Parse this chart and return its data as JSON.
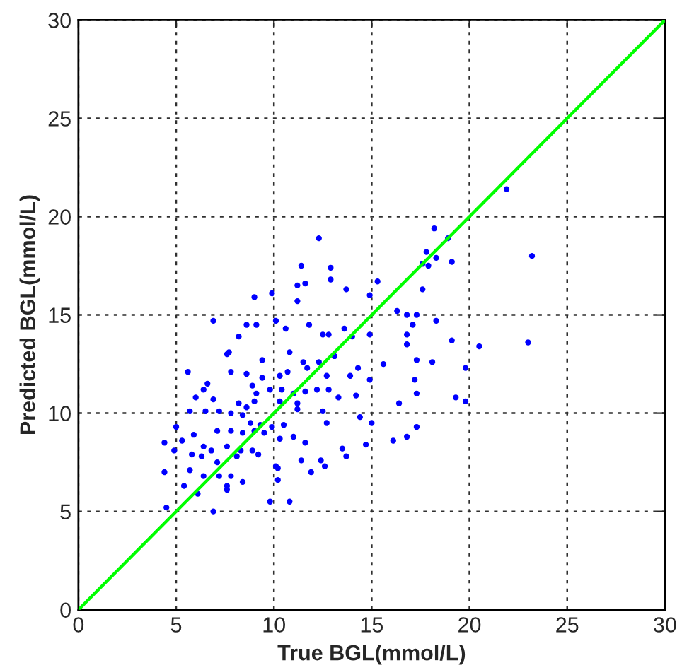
{
  "chart_data": {
    "type": "scatter",
    "xlabel": "True BGL(mmol/L)",
    "ylabel": "Predicted BGL(mmol/L)",
    "xlim": [
      0,
      30
    ],
    "ylim": [
      0,
      30
    ],
    "xticks": [
      0,
      5,
      10,
      15,
      20,
      25,
      30
    ],
    "yticks": [
      0,
      5,
      10,
      15,
      20,
      25,
      30
    ],
    "grid": true,
    "series": [
      {
        "color": "#0000ff",
        "marker": "circle",
        "x": [
          12.3,
          11.4,
          12.9,
          11.6,
          11.2,
          12.9,
          9.9,
          9.0,
          11.2,
          13.7,
          14.9,
          15.3,
          6.9,
          8.6,
          9.1,
          10.1,
          8.2,
          11.8,
          12.5,
          12.8,
          10.6,
          13.6,
          14.0,
          14.9,
          7.6,
          7.7,
          10.8,
          12.3,
          13.1,
          9.4,
          5.6,
          7.8,
          8.6,
          9.4,
          10.3,
          10.7,
          11.5,
          11.7,
          12.7,
          13.9,
          14.3,
          14.9,
          15.6,
          6.6,
          6.4,
          8.9,
          9.8,
          10.4,
          11.0,
          11.6,
          12.2,
          12.8,
          13.3,
          14.2,
          6.0,
          6.9,
          8.2,
          8.6,
          9.0,
          9.1,
          11.2,
          10.3,
          5.7,
          6.5,
          7.2,
          7.8,
          8.4,
          8.8,
          9.3,
          9.9,
          10.5,
          11.2,
          12.5,
          12.7,
          14.4,
          15.0,
          5.0,
          5.9,
          7.1,
          7.8,
          8.4,
          9.0,
          9.5,
          10.3,
          11.0,
          11.6,
          4.4,
          5.3,
          6.4,
          6.8,
          7.6,
          8.3,
          8.9,
          14.7,
          16.1,
          4.9,
          5.8,
          6.3,
          7.1,
          8.1,
          9.2,
          10.1,
          11.4,
          12.4,
          13.5,
          13.7,
          5.7,
          6.4,
          7.2,
          7.8,
          4.4,
          11.9,
          12.6,
          5.4,
          6.1,
          7.6,
          8.4,
          10.2,
          7.6,
          9.8,
          10.8,
          6.9,
          4.5,
          10.2,
          21.9,
          18.2,
          18.9,
          17.8,
          17.6,
          17.9,
          18.3,
          19.1,
          23.2,
          17.6,
          16.3,
          16.8,
          17.3,
          18.3,
          17.1,
          16.8,
          16.8,
          19.1,
          20.5,
          23.0,
          17.3,
          18.1,
          17.2,
          19.8,
          17.3,
          19.3,
          19.8,
          16.4,
          17.3,
          16.8
        ],
        "values": [
          18.9,
          17.5,
          17.4,
          16.6,
          16.5,
          16.8,
          16.1,
          15.9,
          15.7,
          16.3,
          16.0,
          16.7,
          14.7,
          14.5,
          14.5,
          14.7,
          13.9,
          14.5,
          14.0,
          14.0,
          14.3,
          14.3,
          13.9,
          14.0,
          13.0,
          13.1,
          13.1,
          12.6,
          12.9,
          12.7,
          12.1,
          12.1,
          12.0,
          11.8,
          11.9,
          12.1,
          12.6,
          12.3,
          11.9,
          11.9,
          12.3,
          11.7,
          12.5,
          11.5,
          11.2,
          11.4,
          11.2,
          11.2,
          11.0,
          11.1,
          11.2,
          11.2,
          10.8,
          10.9,
          10.8,
          10.7,
          10.5,
          10.3,
          10.6,
          11.0,
          10.5,
          10.6,
          10.1,
          10.1,
          10.1,
          10.0,
          9.9,
          9.5,
          9.4,
          9.3,
          9.4,
          10.2,
          10.1,
          9.5,
          9.8,
          9.5,
          9.3,
          8.9,
          9.1,
          9.1,
          9.0,
          9.1,
          9.0,
          8.7,
          8.8,
          8.5,
          8.5,
          8.6,
          8.3,
          8.1,
          8.3,
          8.1,
          8.1,
          8.4,
          8.6,
          8.1,
          7.9,
          7.8,
          7.5,
          7.8,
          7.9,
          7.3,
          7.6,
          7.6,
          8.2,
          7.8,
          7.1,
          6.8,
          6.8,
          6.8,
          7.0,
          7.0,
          7.3,
          6.3,
          5.9,
          6.3,
          6.5,
          6.6,
          6.1,
          5.5,
          5.5,
          5.0,
          5.2,
          7.2,
          21.4,
          19.4,
          18.9,
          18.2,
          17.6,
          17.5,
          17.9,
          17.7,
          18.0,
          16.3,
          15.2,
          15.0,
          15.0,
          14.7,
          14.5,
          14.0,
          13.5,
          13.7,
          13.4,
          13.6,
          12.7,
          12.6,
          11.7,
          12.3,
          11.0,
          10.8,
          10.6,
          10.5,
          9.3,
          8.8
        ]
      },
      {
        "type": "line",
        "color": "#00ff00",
        "marker": "none",
        "line_style": "solid",
        "x": [
          0,
          30
        ],
        "values": [
          0,
          30
        ]
      }
    ]
  }
}
